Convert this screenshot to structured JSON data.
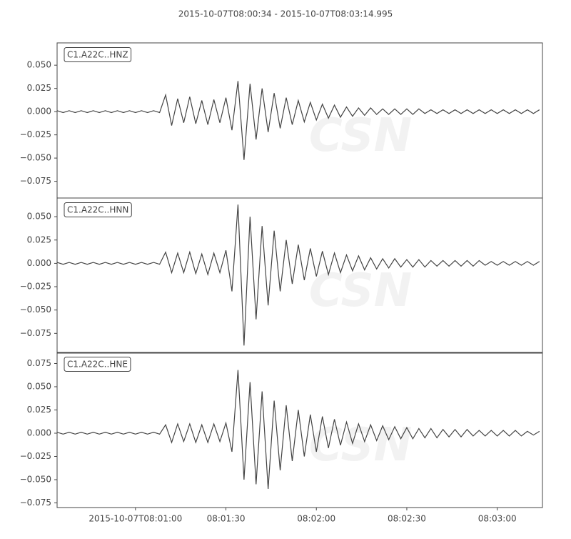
{
  "chart_data": [
    {
      "type": "line",
      "title": "2015-10-07T08:00:34  -  2015-10-07T08:03:14.995",
      "label": "C1.A22C..HNZ",
      "watermark": "CSN",
      "color": "#444444",
      "xlim": [
        "2015-10-07T08:00:34",
        "2015-10-07T08:03:14.995"
      ],
      "ylim": [
        -0.093,
        0.074
      ],
      "yticks": [
        {
          "value": 0.05,
          "label": "0.050"
        },
        {
          "value": 0.025,
          "label": "0.025"
        },
        {
          "value": 0,
          "label": "0.000"
        },
        {
          "value": -0.025,
          "label": "−0.025"
        },
        {
          "value": -0.05,
          "label": "−0.050"
        },
        {
          "value": -0.075,
          "label": "−0.075"
        }
      ],
      "x": [
        "2015-10-07T08:00:34",
        "2015-10-07T08:00:36",
        "2015-10-07T08:00:38",
        "2015-10-07T08:00:40",
        "2015-10-07T08:00:42",
        "2015-10-07T08:00:44",
        "2015-10-07T08:00:46",
        "2015-10-07T08:00:48",
        "2015-10-07T08:00:50",
        "2015-10-07T08:00:52",
        "2015-10-07T08:00:54",
        "2015-10-07T08:00:56",
        "2015-10-07T08:00:58",
        "2015-10-07T08:01:00",
        "2015-10-07T08:01:02",
        "2015-10-07T08:01:04",
        "2015-10-07T08:01:06",
        "2015-10-07T08:01:08",
        "2015-10-07T08:01:10",
        "2015-10-07T08:01:12",
        "2015-10-07T08:01:14",
        "2015-10-07T08:01:16",
        "2015-10-07T08:01:18",
        "2015-10-07T08:01:20",
        "2015-10-07T08:01:22",
        "2015-10-07T08:01:24",
        "2015-10-07T08:01:26",
        "2015-10-07T08:01:28",
        "2015-10-07T08:01:30",
        "2015-10-07T08:01:32",
        "2015-10-07T08:01:34",
        "2015-10-07T08:01:36",
        "2015-10-07T08:01:38",
        "2015-10-07T08:01:40",
        "2015-10-07T08:01:42",
        "2015-10-07T08:01:44",
        "2015-10-07T08:01:46",
        "2015-10-07T08:01:48",
        "2015-10-07T08:01:50",
        "2015-10-07T08:01:52",
        "2015-10-07T08:01:54",
        "2015-10-07T08:01:56",
        "2015-10-07T08:01:58",
        "2015-10-07T08:02:00",
        "2015-10-07T08:02:02",
        "2015-10-07T08:02:04",
        "2015-10-07T08:02:06",
        "2015-10-07T08:02:08",
        "2015-10-07T08:02:10",
        "2015-10-07T08:02:12",
        "2015-10-07T08:02:14",
        "2015-10-07T08:02:16",
        "2015-10-07T08:02:18",
        "2015-10-07T08:02:20",
        "2015-10-07T08:02:22",
        "2015-10-07T08:02:24",
        "2015-10-07T08:02:26",
        "2015-10-07T08:02:28",
        "2015-10-07T08:02:30",
        "2015-10-07T08:02:32",
        "2015-10-07T08:02:34",
        "2015-10-07T08:02:36",
        "2015-10-07T08:02:38",
        "2015-10-07T08:02:40",
        "2015-10-07T08:02:42",
        "2015-10-07T08:02:44",
        "2015-10-07T08:02:46",
        "2015-10-07T08:02:48",
        "2015-10-07T08:02:50",
        "2015-10-07T08:02:52",
        "2015-10-07T08:02:54",
        "2015-10-07T08:02:56",
        "2015-10-07T08:02:58",
        "2015-10-07T08:03:00",
        "2015-10-07T08:03:02",
        "2015-10-07T08:03:04",
        "2015-10-07T08:03:06",
        "2015-10-07T08:03:08",
        "2015-10-07T08:03:10",
        "2015-10-07T08:03:12",
        "2015-10-07T08:03:14"
      ],
      "values": [
        0.001,
        -0.001,
        0.001,
        -0.001,
        0.001,
        -0.001,
        0.001,
        -0.001,
        0.001,
        -0.001,
        0.001,
        -0.001,
        0.001,
        -0.001,
        0.001,
        -0.001,
        0.001,
        -0.001,
        0.018,
        -0.015,
        0.014,
        -0.012,
        0.016,
        -0.013,
        0.012,
        -0.014,
        0.013,
        -0.012,
        0.015,
        -0.02,
        0.033,
        -0.052,
        0.03,
        -0.03,
        0.025,
        -0.022,
        0.02,
        -0.018,
        0.015,
        -0.014,
        0.012,
        -0.011,
        0.01,
        -0.009,
        0.008,
        -0.007,
        0.007,
        -0.006,
        0.005,
        -0.005,
        0.004,
        -0.004,
        0.004,
        -0.003,
        0.003,
        -0.003,
        0.003,
        -0.003,
        0.003,
        -0.003,
        0.003,
        -0.002,
        0.002,
        -0.002,
        0.002,
        -0.002,
        0.002,
        -0.002,
        0.002,
        -0.002,
        0.002,
        -0.002,
        0.002,
        -0.002,
        0.002,
        -0.002,
        0.002,
        -0.002,
        0.002,
        -0.002,
        0.002
      ]
    },
    {
      "type": "line",
      "label": "C1.A22C..HNN",
      "watermark": "CSN",
      "color": "#444444",
      "xlim": [
        "2015-10-07T08:00:34",
        "2015-10-07T08:03:14.995"
      ],
      "ylim": [
        -0.0962,
        0.07
      ],
      "yticks": [
        {
          "value": 0.05,
          "label": "0.050"
        },
        {
          "value": 0.025,
          "label": "0.025"
        },
        {
          "value": 0,
          "label": "0.000"
        },
        {
          "value": -0.025,
          "label": "−0.025"
        },
        {
          "value": -0.05,
          "label": "−0.050"
        },
        {
          "value": -0.075,
          "label": "−0.075"
        }
      ],
      "x": [
        "2015-10-07T08:00:34",
        "2015-10-07T08:00:36",
        "2015-10-07T08:00:38",
        "2015-10-07T08:00:40",
        "2015-10-07T08:00:42",
        "2015-10-07T08:00:44",
        "2015-10-07T08:00:46",
        "2015-10-07T08:00:48",
        "2015-10-07T08:00:50",
        "2015-10-07T08:00:52",
        "2015-10-07T08:00:54",
        "2015-10-07T08:00:56",
        "2015-10-07T08:00:58",
        "2015-10-07T08:01:00",
        "2015-10-07T08:01:02",
        "2015-10-07T08:01:04",
        "2015-10-07T08:01:06",
        "2015-10-07T08:01:08",
        "2015-10-07T08:01:10",
        "2015-10-07T08:01:12",
        "2015-10-07T08:01:14",
        "2015-10-07T08:01:16",
        "2015-10-07T08:01:18",
        "2015-10-07T08:01:20",
        "2015-10-07T08:01:22",
        "2015-10-07T08:01:24",
        "2015-10-07T08:01:26",
        "2015-10-07T08:01:28",
        "2015-10-07T08:01:30",
        "2015-10-07T08:01:32",
        "2015-10-07T08:01:34",
        "2015-10-07T08:01:36",
        "2015-10-07T08:01:38",
        "2015-10-07T08:01:40",
        "2015-10-07T08:01:42",
        "2015-10-07T08:01:44",
        "2015-10-07T08:01:46",
        "2015-10-07T08:01:48",
        "2015-10-07T08:01:50",
        "2015-10-07T08:01:52",
        "2015-10-07T08:01:54",
        "2015-10-07T08:01:56",
        "2015-10-07T08:01:58",
        "2015-10-07T08:02:00",
        "2015-10-07T08:02:02",
        "2015-10-07T08:02:04",
        "2015-10-07T08:02:06",
        "2015-10-07T08:02:08",
        "2015-10-07T08:02:10",
        "2015-10-07T08:02:12",
        "2015-10-07T08:02:14",
        "2015-10-07T08:02:16",
        "2015-10-07T08:02:18",
        "2015-10-07T08:02:20",
        "2015-10-07T08:02:22",
        "2015-10-07T08:02:24",
        "2015-10-07T08:02:26",
        "2015-10-07T08:02:28",
        "2015-10-07T08:02:30",
        "2015-10-07T08:02:32",
        "2015-10-07T08:02:34",
        "2015-10-07T08:02:36",
        "2015-10-07T08:02:38",
        "2015-10-07T08:02:40",
        "2015-10-07T08:02:42",
        "2015-10-07T08:02:44",
        "2015-10-07T08:02:46",
        "2015-10-07T08:02:48",
        "2015-10-07T08:02:50",
        "2015-10-07T08:02:52",
        "2015-10-07T08:02:54",
        "2015-10-07T08:02:56",
        "2015-10-07T08:02:58",
        "2015-10-07T08:03:00",
        "2015-10-07T08:03:02",
        "2015-10-07T08:03:04",
        "2015-10-07T08:03:06",
        "2015-10-07T08:03:08",
        "2015-10-07T08:03:10",
        "2015-10-07T08:03:12",
        "2015-10-07T08:03:14"
      ],
      "values": [
        0.001,
        -0.001,
        0.001,
        -0.001,
        0.001,
        -0.001,
        0.001,
        -0.001,
        0.001,
        -0.001,
        0.001,
        -0.001,
        0.001,
        -0.001,
        0.001,
        -0.001,
        0.001,
        -0.001,
        0.012,
        -0.01,
        0.011,
        -0.01,
        0.012,
        -0.011,
        0.01,
        -0.012,
        0.011,
        -0.01,
        0.014,
        -0.03,
        0.063,
        -0.088,
        0.05,
        -0.06,
        0.04,
        -0.045,
        0.035,
        -0.03,
        0.025,
        -0.022,
        0.02,
        -0.018,
        0.016,
        -0.014,
        0.013,
        -0.012,
        0.011,
        -0.01,
        0.009,
        -0.008,
        0.008,
        -0.007,
        0.006,
        -0.006,
        0.005,
        -0.005,
        0.005,
        -0.004,
        0.004,
        -0.004,
        0.004,
        -0.004,
        0.003,
        -0.003,
        0.003,
        -0.003,
        0.003,
        -0.003,
        0.003,
        -0.003,
        0.003,
        -0.002,
        0.002,
        -0.002,
        0.002,
        -0.002,
        0.002,
        -0.002,
        0.002,
        -0.002,
        0.002
      ]
    },
    {
      "type": "line",
      "label": "C1.A22C..HNE",
      "watermark": "CSN",
      "color": "#444444",
      "xlim": [
        "2015-10-07T08:00:34",
        "2015-10-07T08:03:14.995"
      ],
      "xticks": [
        {
          "value": "2015-10-07T08:01:00",
          "label": "2015-10-07T08:01:00"
        },
        {
          "value": "2015-10-07T08:01:30",
          "label": "08:01:30"
        },
        {
          "value": "2015-10-07T08:02:00",
          "label": "08:02:00"
        },
        {
          "value": "2015-10-07T08:02:30",
          "label": "08:02:30"
        },
        {
          "value": "2015-10-07T08:03:00",
          "label": "08:03:00"
        }
      ],
      "ylim": [
        -0.08,
        0.0869
      ],
      "yticks": [
        {
          "value": 0.075,
          "label": "0.075"
        },
        {
          "value": 0.05,
          "label": "0.050"
        },
        {
          "value": 0.025,
          "label": "0.025"
        },
        {
          "value": 0,
          "label": "0.000"
        },
        {
          "value": -0.025,
          "label": "−0.025"
        },
        {
          "value": -0.05,
          "label": "−0.050"
        },
        {
          "value": -0.075,
          "label": "−0.075"
        }
      ],
      "x": [
        "2015-10-07T08:00:34",
        "2015-10-07T08:00:36",
        "2015-10-07T08:00:38",
        "2015-10-07T08:00:40",
        "2015-10-07T08:00:42",
        "2015-10-07T08:00:44",
        "2015-10-07T08:00:46",
        "2015-10-07T08:00:48",
        "2015-10-07T08:00:50",
        "2015-10-07T08:00:52",
        "2015-10-07T08:00:54",
        "2015-10-07T08:00:56",
        "2015-10-07T08:00:58",
        "2015-10-07T08:01:00",
        "2015-10-07T08:01:02",
        "2015-10-07T08:01:04",
        "2015-10-07T08:01:06",
        "2015-10-07T08:01:08",
        "2015-10-07T08:01:10",
        "2015-10-07T08:01:12",
        "2015-10-07T08:01:14",
        "2015-10-07T08:01:16",
        "2015-10-07T08:01:18",
        "2015-10-07T08:01:20",
        "2015-10-07T08:01:22",
        "2015-10-07T08:01:24",
        "2015-10-07T08:01:26",
        "2015-10-07T08:01:28",
        "2015-10-07T08:01:30",
        "2015-10-07T08:01:32",
        "2015-10-07T08:01:34",
        "2015-10-07T08:01:36",
        "2015-10-07T08:01:38",
        "2015-10-07T08:01:40",
        "2015-10-07T08:01:42",
        "2015-10-07T08:01:44",
        "2015-10-07T08:01:46",
        "2015-10-07T08:01:48",
        "2015-10-07T08:01:50",
        "2015-10-07T08:01:52",
        "2015-10-07T08:01:54",
        "2015-10-07T08:01:56",
        "2015-10-07T08:01:58",
        "2015-10-07T08:02:00",
        "2015-10-07T08:02:02",
        "2015-10-07T08:02:04",
        "2015-10-07T08:02:06",
        "2015-10-07T08:02:08",
        "2015-10-07T08:02:10",
        "2015-10-07T08:02:12",
        "2015-10-07T08:02:14",
        "2015-10-07T08:02:16",
        "2015-10-07T08:02:18",
        "2015-10-07T08:02:20",
        "2015-10-07T08:02:22",
        "2015-10-07T08:02:24",
        "2015-10-07T08:02:26",
        "2015-10-07T08:02:28",
        "2015-10-07T08:02:30",
        "2015-10-07T08:02:32",
        "2015-10-07T08:02:34",
        "2015-10-07T08:02:36",
        "2015-10-07T08:02:38",
        "2015-10-07T08:02:40",
        "2015-10-07T08:02:42",
        "2015-10-07T08:02:44",
        "2015-10-07T08:02:46",
        "2015-10-07T08:02:48",
        "2015-10-07T08:02:50",
        "2015-10-07T08:02:52",
        "2015-10-07T08:02:54",
        "2015-10-07T08:02:56",
        "2015-10-07T08:02:58",
        "2015-10-07T08:03:00",
        "2015-10-07T08:03:02",
        "2015-10-07T08:03:04",
        "2015-10-07T08:03:06",
        "2015-10-07T08:03:08",
        "2015-10-07T08:03:10",
        "2015-10-07T08:03:12",
        "2015-10-07T08:03:14"
      ],
      "values": [
        0.001,
        -0.001,
        0.001,
        -0.001,
        0.001,
        -0.001,
        0.001,
        -0.001,
        0.001,
        -0.001,
        0.001,
        -0.001,
        0.001,
        -0.001,
        0.001,
        -0.001,
        0.001,
        -0.001,
        0.009,
        -0.01,
        0.01,
        -0.009,
        0.01,
        -0.01,
        0.009,
        -0.01,
        0.01,
        -0.009,
        0.011,
        -0.02,
        0.068,
        -0.05,
        0.055,
        -0.055,
        0.045,
        -0.06,
        0.035,
        -0.04,
        0.03,
        -0.03,
        0.025,
        -0.025,
        0.02,
        -0.02,
        0.018,
        -0.016,
        0.015,
        -0.013,
        0.012,
        -0.011,
        0.01,
        -0.009,
        0.009,
        -0.008,
        0.008,
        -0.007,
        0.007,
        -0.006,
        0.006,
        -0.006,
        0.005,
        -0.005,
        0.005,
        -0.005,
        0.004,
        -0.004,
        0.004,
        -0.004,
        0.004,
        -0.003,
        0.003,
        -0.003,
        0.003,
        -0.003,
        0.003,
        -0.003,
        0.003,
        -0.003,
        0.002,
        -0.002,
        0.002
      ]
    }
  ]
}
